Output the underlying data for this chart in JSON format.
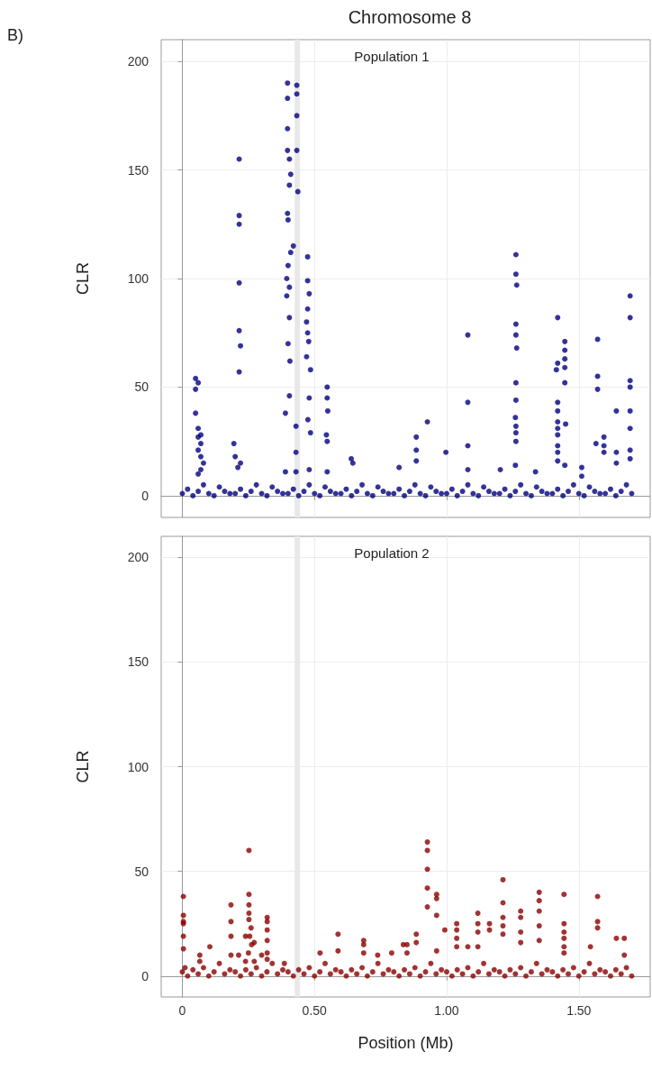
{
  "chart_data": [
    {
      "type": "scatter",
      "title": "Chromosome 8",
      "subtitle": "Population 1",
      "ylabel": "CLR",
      "annotations": [
        "B)"
      ],
      "marker": "circle",
      "grid": true,
      "tick_labels": "y",
      "xlim": [
        -0.08,
        1.77
      ],
      "xticks": [
        0,
        0.5,
        1,
        1.5
      ],
      "ylim": [
        -10,
        210
      ],
      "yticks": [
        0,
        50,
        100,
        150,
        200
      ],
      "bands": [
        {
          "axis": "x",
          "from": 0.425,
          "to": 0.445,
          "color": "#e8e8e8"
        }
      ],
      "series": [
        {
          "color": "#000080",
          "x": [
            0.05,
            0.06,
            0.05,
            0.05,
            0.06,
            0.07,
            0.06,
            0.07,
            0.06,
            0.07,
            0.08,
            0.07,
            0.06,
            0.215,
            0.215,
            0.215,
            0.215,
            0.215,
            0.22,
            0.215,
            0.195,
            0.2,
            0.22,
            0.21,
            0.398,
            0.398,
            0.398,
            0.398,
            0.405,
            0.41,
            0.405,
            0.398,
            0.4,
            0.42,
            0.41,
            0.4,
            0.395,
            0.405,
            0.395,
            0.405,
            0.4,
            0.407,
            0.405,
            0.39,
            0.39,
            0.433,
            0.433,
            0.433,
            0.433,
            0.437,
            0.43,
            0.43,
            0.43,
            0.474,
            0.474,
            0.48,
            0.474,
            0.47,
            0.474,
            0.478,
            0.47,
            0.485,
            0.48,
            0.475,
            0.485,
            0.48,
            0.548,
            0.548,
            0.55,
            0.545,
            0.548,
            0.548,
            0.639,
            0.645,
            0.82,
            0.927,
            0.885,
            0.885,
            0.885,
            0.997,
            1.08,
            1.08,
            1.08,
            1.08,
            1.203,
            1.262,
            1.262,
            1.265,
            1.262,
            1.262,
            1.265,
            1.262,
            1.262,
            1.26,
            1.262,
            1.262,
            1.262,
            1.26,
            1.336,
            1.42,
            1.42,
            1.415,
            1.42,
            1.42,
            1.42,
            1.42,
            1.42,
            1.42,
            1.42,
            1.42,
            1.447,
            1.447,
            1.447,
            1.447,
            1.447,
            1.45,
            1.447,
            1.511,
            1.511,
            1.571,
            1.571,
            1.571,
            1.565,
            1.595,
            1.595,
            1.595,
            1.642,
            1.642,
            1.642,
            1.694,
            1.694,
            1.694,
            1.694,
            1.694,
            1.694,
            1.694,
            1.694
          ],
          "values": [
            54,
            52,
            49,
            38,
            31,
            28,
            27,
            24,
            21,
            18,
            15,
            12,
            10,
            155,
            129,
            125,
            98,
            76,
            69,
            57,
            24,
            18,
            15,
            13,
            190,
            183,
            169,
            159,
            155,
            148,
            143,
            130,
            127,
            115,
            112,
            106,
            100,
            96,
            92,
            82,
            70,
            62,
            46,
            38,
            11,
            189,
            185,
            175,
            159,
            140,
            32,
            20,
            11,
            110,
            99,
            93,
            86,
            80,
            75,
            71,
            64,
            58,
            45,
            35,
            29,
            12,
            50,
            45,
            39,
            28,
            25,
            11,
            17,
            15,
            13,
            34,
            27,
            21,
            16,
            20,
            74,
            43,
            23,
            12,
            12,
            111,
            102,
            97,
            79,
            74,
            68,
            52,
            44,
            36,
            32,
            29,
            25,
            14,
            11,
            82,
            61,
            58,
            43,
            39,
            34,
            31,
            28,
            23,
            20,
            16,
            71,
            67,
            63,
            59,
            52,
            33,
            14,
            13,
            9,
            72,
            55,
            49,
            24,
            27,
            23,
            20,
            39,
            20,
            15,
            92,
            82,
            53,
            50,
            39,
            31,
            21,
            17
          ]
        },
        {
          "color": "#000080",
          "x": [
            0,
            0.02,
            0.04,
            0.06,
            0.08,
            0.1,
            0.12,
            0.14,
            0.16,
            0.18,
            0.2,
            0.22,
            0.24,
            0.26,
            0.28,
            0.3,
            0.32,
            0.34,
            0.36,
            0.38,
            0.4,
            0.42,
            0.44,
            0.46,
            0.48,
            0.5,
            0.52,
            0.54,
            0.56,
            0.58,
            0.6,
            0.62,
            0.64,
            0.66,
            0.68,
            0.7,
            0.72,
            0.74,
            0.76,
            0.78,
            0.8,
            0.82,
            0.84,
            0.86,
            0.88,
            0.9,
            0.92,
            0.94,
            0.96,
            0.98,
            1,
            1.02,
            1.04,
            1.06,
            1.08,
            1.1,
            1.12,
            1.14,
            1.16,
            1.18,
            1.2,
            1.22,
            1.24,
            1.26,
            1.28,
            1.3,
            1.32,
            1.34,
            1.36,
            1.38,
            1.4,
            1.42,
            1.44,
            1.46,
            1.48,
            1.5,
            1.52,
            1.54,
            1.56,
            1.58,
            1.6,
            1.62,
            1.64,
            1.66,
            1.68,
            1.7
          ],
          "values": [
            1,
            3,
            0,
            2,
            5,
            1,
            0,
            4,
            2,
            1,
            1,
            3,
            0,
            2,
            5,
            1,
            0,
            4,
            2,
            1,
            1,
            3,
            0,
            2,
            5,
            1,
            0,
            4,
            2,
            1,
            1,
            3,
            0,
            2,
            5,
            1,
            0,
            4,
            2,
            1,
            1,
            3,
            0,
            2,
            5,
            1,
            0,
            4,
            2,
            1,
            1,
            3,
            0,
            2,
            5,
            1,
            0,
            4,
            2,
            1,
            1,
            3,
            0,
            2,
            5,
            1,
            0,
            4,
            2,
            1,
            1,
            3,
            0,
            2,
            5,
            1,
            0,
            4,
            2,
            1,
            1,
            3,
            0,
            2,
            5,
            1
          ]
        }
      ]
    },
    {
      "type": "scatter",
      "subtitle": "Population 2",
      "xlabel": "Position (Mb)",
      "ylabel": "CLR",
      "marker": "circle",
      "grid": true,
      "xlim": [
        -0.08,
        1.77
      ],
      "xticks": [
        {
          "value": 0,
          "label": "0"
        },
        {
          "value": 0.5,
          "label": "0.50"
        },
        {
          "value": 1,
          "label": "1.00"
        },
        {
          "value": 1.5,
          "label": "1.50"
        }
      ],
      "ylim": [
        -10,
        210
      ],
      "yticks": [
        0,
        50,
        100,
        150,
        200
      ],
      "bands": [
        {
          "axis": "x",
          "from": 0.425,
          "to": 0.445,
          "color": "#e8e8e8"
        }
      ],
      "series": [
        {
          "color": "#8b0000",
          "x": [
            0.004,
            0.004,
            0.004,
            0.004,
            0.004,
            0.004,
            0.01,
            0.066,
            0.066,
            0.104,
            0.184,
            0.184,
            0.184,
            0.184,
            0.213,
            0.239,
            0.239,
            0.252,
            0.252,
            0.252,
            0.252,
            0.252,
            0.26,
            0.255,
            0.262,
            0.25,
            0.272,
            0.272,
            0.3,
            0.321,
            0.321,
            0.321,
            0.321,
            0.321,
            0.321,
            0.386,
            0.521,
            0.589,
            0.589,
            0.686,
            0.686,
            0.686,
            0.739,
            0.792,
            0.836,
            0.85,
            0.85,
            0.885,
            0.885,
            0.927,
            0.927,
            0.927,
            0.927,
            0.927,
            0.962,
            0.962,
            0.962,
            0.962,
            0.993,
            1.038,
            1.038,
            1.038,
            1.038,
            1.08,
            1.118,
            1.118,
            1.118,
            1.118,
            1.162,
            1.162,
            1.213,
            1.213,
            1.213,
            1.213,
            1.213,
            1.28,
            1.28,
            1.28,
            1.28,
            1.35,
            1.35,
            1.35,
            1.35,
            1.35,
            1.444,
            1.444,
            1.444,
            1.444,
            1.444,
            1.444,
            1.544,
            1.571,
            1.571,
            1.571,
            1.642,
            1.672,
            1.672
          ],
          "values": [
            38,
            29,
            26,
            25,
            19,
            13,
            4,
            10,
            7,
            14,
            34,
            26,
            19,
            10,
            10,
            19,
            7,
            60,
            39,
            34,
            30,
            27,
            23,
            19,
            15,
            11,
            16,
            7,
            10,
            28,
            26,
            22,
            17,
            11,
            8,
            6,
            11,
            20,
            12,
            17,
            15,
            11,
            10,
            11,
            15,
            15,
            11,
            20,
            16,
            64,
            60,
            51,
            42,
            33,
            39,
            37,
            29,
            12,
            22,
            25,
            22,
            18,
            14,
            14,
            30,
            25,
            21,
            14,
            25,
            22,
            46,
            35,
            28,
            24,
            20,
            31,
            28,
            21,
            16,
            40,
            36,
            31,
            24,
            17,
            39,
            25,
            21,
            18,
            14,
            11,
            14,
            38,
            26,
            23,
            18,
            18,
            10
          ]
        },
        {
          "color": "#8b0000",
          "x": [
            0,
            0.02,
            0.04,
            0.06,
            0.08,
            0.1,
            0.12,
            0.14,
            0.16,
            0.18,
            0.2,
            0.22,
            0.24,
            0.26,
            0.28,
            0.3,
            0.32,
            0.34,
            0.36,
            0.38,
            0.4,
            0.42,
            0.44,
            0.46,
            0.48,
            0.5,
            0.52,
            0.54,
            0.56,
            0.58,
            0.6,
            0.62,
            0.64,
            0.66,
            0.68,
            0.7,
            0.72,
            0.74,
            0.76,
            0.78,
            0.8,
            0.82,
            0.84,
            0.86,
            0.88,
            0.9,
            0.92,
            0.94,
            0.96,
            0.98,
            1,
            1.02,
            1.04,
            1.06,
            1.08,
            1.1,
            1.12,
            1.14,
            1.16,
            1.18,
            1.2,
            1.22,
            1.24,
            1.26,
            1.28,
            1.3,
            1.32,
            1.34,
            1.36,
            1.38,
            1.4,
            1.42,
            1.44,
            1.46,
            1.48,
            1.5,
            1.52,
            1.54,
            1.56,
            1.58,
            1.6,
            1.62,
            1.64,
            1.66,
            1.68,
            1.7
          ],
          "values": [
            2,
            0,
            3,
            1,
            4,
            0,
            2,
            6,
            1,
            3,
            2,
            0,
            3,
            1,
            4,
            0,
            2,
            6,
            1,
            3,
            2,
            0,
            3,
            1,
            4,
            0,
            2,
            6,
            1,
            3,
            2,
            0,
            3,
            1,
            4,
            0,
            2,
            6,
            1,
            3,
            2,
            0,
            3,
            1,
            4,
            0,
            2,
            6,
            1,
            3,
            2,
            0,
            3,
            1,
            4,
            0,
            2,
            6,
            1,
            3,
            2,
            0,
            3,
            1,
            4,
            0,
            2,
            6,
            1,
            3,
            2,
            0,
            3,
            1,
            4,
            0,
            2,
            6,
            1,
            3,
            2,
            0,
            3,
            1,
            4,
            0
          ]
        }
      ]
    }
  ]
}
